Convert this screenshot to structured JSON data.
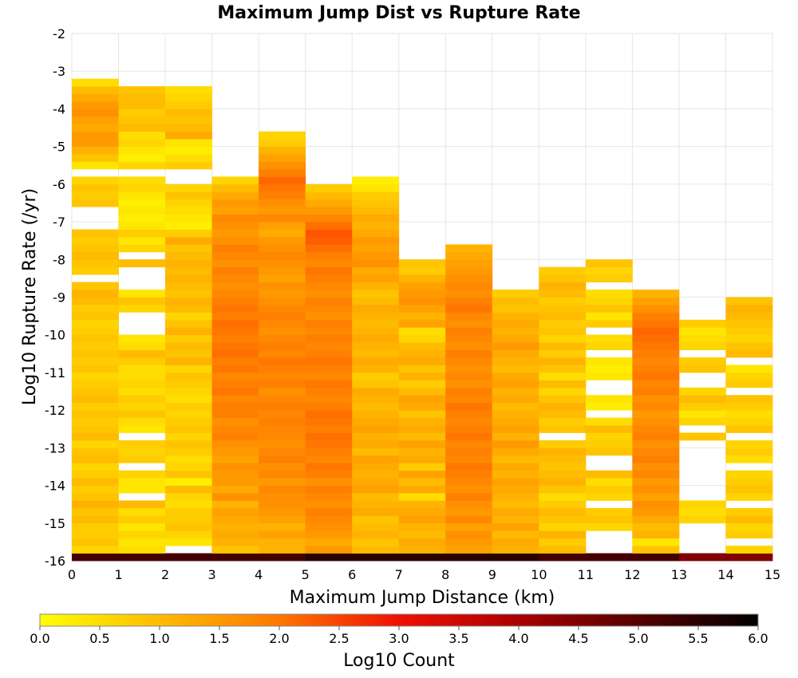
{
  "chart_data": {
    "type": "heatmap",
    "title": "Maximum Jump Dist vs Rupture Rate",
    "xlabel": "Maximum Jump Distance (km)",
    "ylabel": "Log10 Rupture Rate (/yr)",
    "xlim": [
      0,
      15
    ],
    "ylim": [
      -16,
      -2
    ],
    "x_ticks": [
      "0",
      "1",
      "2",
      "3",
      "4",
      "5",
      "6",
      "7",
      "8",
      "9",
      "10",
      "11",
      "12",
      "13",
      "14",
      "15"
    ],
    "y_ticks": [
      "-2",
      "-3",
      "-4",
      "-5",
      "-6",
      "-7",
      "-8",
      "-9",
      "-10",
      "-11",
      "-12",
      "-13",
      "-14",
      "-15",
      "-16"
    ],
    "x_bin_width": 1,
    "y_bin_width": 0.2,
    "y_bin_start": -15.9,
    "grid": true,
    "colorbar": {
      "label": "Log10 Count",
      "min": 0.0,
      "max": 6.0,
      "ticks": [
        "0.0",
        "0.5",
        "1.0",
        "1.5",
        "2.0",
        "2.5",
        "3.0",
        "3.5",
        "4.0",
        "4.5",
        "5.0",
        "5.5",
        "6.0"
      ],
      "colormap": [
        "#ffff00",
        "#ffaa00",
        "#ff5500",
        "#ee1100",
        "#aa0000",
        "#550000",
        "#000000"
      ]
    },
    "columns": [
      {
        "x": 0.5,
        "values": [
          5.2,
          0.5,
          0.7,
          0.6,
          0.6,
          0.8,
          0.7,
          0.9,
          0.7,
          0.6,
          0.8,
          0.6,
          0.5,
          0.8,
          0.7,
          0.5,
          0.8,
          0.7,
          0.6,
          0.7,
          0.6,
          0.8,
          0.7,
          0.6,
          0.5,
          0.7,
          0.6,
          0.7,
          0.6,
          0.7,
          0.6,
          0.5,
          0.7,
          0.6,
          0.8,
          0.9,
          0.7,
          null,
          0.6,
          0.7,
          0.8,
          0.7,
          0.6,
          0.7,
          null,
          null,
          null,
          0.7,
          0.6,
          0.7,
          0.5,
          null,
          0.3,
          0.7,
          0.9,
          1.2,
          1.2,
          1.0,
          1.1,
          1.3,
          1.2,
          1.0,
          0.8,
          0.4
        ]
      },
      {
        "x": 1.5,
        "values": [
          5.2,
          0.4,
          0.3,
          0.5,
          0.3,
          0.6,
          0.4,
          0.8,
          null,
          0.3,
          0.3,
          0.5,
          null,
          0.6,
          0.5,
          0.6,
          null,
          0.3,
          0.4,
          0.7,
          0.5,
          0.6,
          0.4,
          0.5,
          0.4,
          0.4,
          0.6,
          0.8,
          0.4,
          0.3,
          null,
          null,
          null,
          0.5,
          0.7,
          0.3,
          null,
          null,
          null,
          0.8,
          null,
          0.5,
          0.3,
          0.6,
          0.3,
          0.2,
          0.3,
          0.2,
          0.3,
          0.5,
          0.4,
          null,
          0.5,
          0.2,
          0.3,
          0.5,
          0.4,
          0.8,
          0.7,
          0.6,
          0.8,
          0.8,
          0.7,
          null,
          null
        ]
      },
      {
        "x": 2.5,
        "values": [
          5.2,
          null,
          0.3,
          0.5,
          0.7,
          0.6,
          0.6,
          0.4,
          0.5,
          0.8,
          0.2,
          0.7,
          0.5,
          0.4,
          0.6,
          0.7,
          0.5,
          0.7,
          0.6,
          0.5,
          0.6,
          0.4,
          0.5,
          0.6,
          0.7,
          0.5,
          0.9,
          0.7,
          0.8,
          0.6,
          0.9,
          0.7,
          0.5,
          0.8,
          0.9,
          0.7,
          0.8,
          0.9,
          0.8,
          0.9,
          0.8,
          0.7,
          1.0,
          0.6,
          0.2,
          0.3,
          0.4,
          0.5,
          0.7,
          0.5,
          null,
          null,
          0.6,
          0.4,
          0.2,
          0.3,
          1.0,
          0.8,
          0.7,
          0.8,
          0.6,
          0.5,
          0.4,
          null
        ]
      },
      {
        "x": 3.5,
        "values": [
          5.2,
          0.7,
          0.9,
          1.0,
          0.9,
          1.0,
          1.1,
          0.9,
          1.3,
          1.0,
          1.2,
          1.2,
          1.3,
          1.1,
          1.2,
          1.3,
          1.5,
          1.4,
          1.3,
          1.5,
          1.5,
          1.4,
          1.6,
          1.5,
          1.4,
          1.6,
          1.5,
          1.7,
          1.6,
          1.5,
          1.6,
          1.7,
          1.5,
          1.6,
          1.5,
          1.4,
          1.3,
          1.4,
          1.5,
          1.3,
          1.4,
          1.5,
          1.3,
          1.2,
          1.3,
          1.4,
          1.1,
          1.2,
          1.0,
          0.8,
          0.5
        ]
      },
      {
        "x": 4.5,
        "values": [
          5.2,
          0.9,
          0.9,
          1.1,
          0.9,
          1.1,
          1.2,
          1.3,
          1.3,
          1.4,
          1.2,
          1.4,
          1.3,
          1.5,
          1.4,
          1.3,
          1.4,
          1.4,
          1.5,
          1.4,
          1.5,
          1.4,
          1.3,
          1.5,
          1.4,
          1.5,
          1.6,
          1.4,
          1.5,
          1.4,
          1.3,
          1.4,
          1.5,
          1.4,
          1.3,
          1.2,
          1.3,
          1.1,
          1.2,
          1.3,
          1.4,
          1.3,
          1.2,
          1.0,
          1.1,
          1.4,
          1.2,
          1.3,
          1.5,
          1.6,
          1.8,
          1.5,
          1.3,
          1.1,
          0.9,
          0.6,
          0.5
        ]
      },
      {
        "x": 5.5,
        "values": [
          5.5,
          1.2,
          1.0,
          1.2,
          1.3,
          1.4,
          1.5,
          1.3,
          1.4,
          1.5,
          1.3,
          1.5,
          1.6,
          1.4,
          1.5,
          1.6,
          1.7,
          1.5,
          1.6,
          1.7,
          1.5,
          1.4,
          1.5,
          1.6,
          1.4,
          1.5,
          1.6,
          1.5,
          1.4,
          1.5,
          1.4,
          1.5,
          1.3,
          1.4,
          1.5,
          1.3,
          1.4,
          1.5,
          1.6,
          1.4,
          1.5,
          1.7,
          1.9,
          2.0,
          1.7,
          1.4,
          1.2,
          1.0,
          0.8,
          0.6
        ]
      },
      {
        "x": 6.5,
        "values": [
          5.5,
          0.8,
          0.7,
          0.9,
          0.8,
          0.7,
          1.0,
          0.9,
          0.8,
          1.1,
          1.0,
          0.9,
          1.0,
          1.1,
          0.8,
          1.0,
          0.9,
          1.1,
          1.0,
          0.9,
          0.8,
          0.9,
          1.0,
          0.7,
          0.6,
          0.9,
          1.0,
          0.8,
          0.9,
          1.0,
          0.9,
          0.8,
          0.9,
          1.0,
          0.8,
          0.7,
          0.9,
          1.1,
          1.0,
          1.3,
          1.2,
          1.1,
          1.2,
          1.0,
          0.9,
          1.0,
          0.8,
          0.7,
          0.6,
          0.3,
          0.2
        ]
      },
      {
        "x": 7.5,
        "values": [
          5.5,
          0.9,
          1.0,
          0.8,
          0.9,
          1.1,
          1.0,
          0.9,
          0.4,
          1.0,
          0.8,
          1.1,
          0.6,
          1.0,
          0.9,
          1.1,
          0.8,
          1.0,
          0.9,
          0.7,
          1.0,
          1.1,
          0.8,
          0.6,
          0.9,
          0.7,
          1.0,
          0.9,
          0.8,
          0.5,
          0.4,
          1.1,
          0.9,
          1.1,
          1.3,
          1.2,
          1.1,
          0.9,
          0.6,
          0.7
        ]
      },
      {
        "x": 8.5,
        "values": [
          5.5,
          1.1,
          1.2,
          1.3,
          1.1,
          1.4,
          1.2,
          1.3,
          1.5,
          1.3,
          1.4,
          1.5,
          1.6,
          1.4,
          1.5,
          1.4,
          1.6,
          1.5,
          1.4,
          1.5,
          1.6,
          1.4,
          1.5,
          1.3,
          1.4,
          1.3,
          1.4,
          1.5,
          1.3,
          1.4,
          1.5,
          1.3,
          1.4,
          1.6,
          1.5,
          1.3,
          1.4,
          1.3,
          1.2,
          1.1,
          1.0,
          0.9
        ]
      },
      {
        "x": 9.5,
        "values": [
          5.5,
          0.9,
          1.0,
          0.8,
          1.1,
          0.9,
          1.0,
          0.8,
          0.9,
          1.0,
          1.1,
          0.9,
          1.0,
          0.8,
          1.0,
          1.2,
          0.9,
          1.1,
          1.0,
          0.9,
          0.8,
          1.0,
          0.9,
          1.1,
          1.0,
          0.8,
          0.9,
          1.0,
          1.2,
          1.0,
          0.9,
          1.0,
          0.9,
          0.7,
          0.8,
          0.6
        ]
      },
      {
        "x": 10.5,
        "values": [
          5.2,
          0.8,
          0.6,
          0.9,
          0.5,
          0.7,
          0.8,
          0.6,
          0.4,
          0.7,
          0.9,
          0.8,
          0.7,
          0.8,
          0.9,
          0.6,
          null,
          0.7,
          0.6,
          0.8,
          0.9,
          0.7,
          0.5,
          0.8,
          0.4,
          0.7,
          0.9,
          0.6,
          0.8,
          0.5,
          0.7,
          0.6,
          0.8,
          0.7,
          0.6,
          0.8,
          0.9,
          0.7,
          0.6
        ]
      },
      {
        "x": 11.5,
        "values": [
          5.2,
          null,
          null,
          null,
          0.5,
          0.7,
          0.6,
          null,
          0.5,
          0.6,
          0.4,
          0.8,
          null,
          null,
          0.7,
          0.6,
          0.5,
          0.8,
          0.4,
          null,
          0.2,
          0.3,
          null,
          null,
          0.3,
          0.2,
          0.3,
          null,
          0.5,
          0.4,
          null,
          0.6,
          0.3,
          0.7,
          0.5,
          0.4,
          null,
          0.6,
          0.5,
          0.7
        ]
      },
      {
        "x": 12.5,
        "values": [
          5.2,
          0.7,
          0.3,
          0.9,
          0.8,
          1.0,
          1.2,
          1.3,
          1.1,
          1.3,
          1.2,
          1.4,
          1.3,
          1.5,
          1.4,
          1.3,
          1.5,
          1.4,
          1.3,
          1.2,
          1.4,
          1.3,
          1.5,
          1.4,
          1.6,
          1.5,
          1.4,
          1.5,
          1.6,
          1.7,
          1.8,
          1.6,
          1.5,
          1.3,
          1.1,
          0.9
        ]
      },
      {
        "x": 13.5,
        "values": [
          4.5,
          null,
          null,
          null,
          null,
          0.5,
          0.4,
          0.5,
          null,
          null,
          null,
          null,
          null,
          null,
          null,
          null,
          0.7,
          null,
          0.5,
          0.3,
          0.6,
          0.8,
          0.5,
          null,
          null,
          0.7,
          0.6,
          null,
          0.5,
          0.4,
          0.3,
          0.6
        ]
      },
      {
        "x": 14.5,
        "values": [
          4.5,
          0.5,
          null,
          0.6,
          0.5,
          0.8,
          0.6,
          null,
          0.5,
          0.7,
          0.6,
          0.5,
          null,
          0.4,
          0.6,
          0.5,
          null,
          0.7,
          0.5,
          0.4,
          0.6,
          0.7,
          null,
          0.6,
          0.5,
          0.3,
          null,
          0.8,
          0.7,
          0.5,
          0.6,
          0.7,
          0.8,
          0.9,
          0.7
        ]
      }
    ]
  }
}
